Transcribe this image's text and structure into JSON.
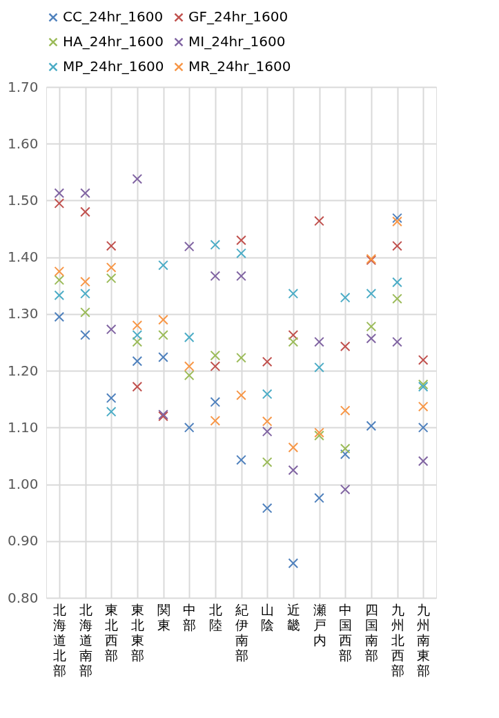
{
  "chart_data": {
    "type": "scatter",
    "categories": [
      "北海道北部",
      "北海道南部",
      "東北西部",
      "東北東部",
      "関東",
      "中部",
      "北陸",
      "紀伊南部",
      "山陰",
      "近畿",
      "瀬戸内",
      "中国西部",
      "四国南部",
      "九州北西部",
      "九州南東部"
    ],
    "series": [
      {
        "name": "CC_24hr_1600",
        "color": "#4f81bd",
        "values": [
          1.295,
          1.263,
          1.152,
          1.217,
          1.224,
          1.1,
          1.145,
          1.043,
          0.958,
          0.861,
          0.976,
          1.053,
          1.103,
          1.469,
          1.1
        ]
      },
      {
        "name": "GF_24hr_1600",
        "color": "#c0504d",
        "values": [
          1.495,
          1.48,
          1.42,
          1.172,
          1.12,
          null,
          1.208,
          1.43,
          1.216,
          1.263,
          1.464,
          1.243,
          1.395,
          1.42,
          1.219
        ]
      },
      {
        "name": "HA_24hr_1600",
        "color": "#9bbb59",
        "values": [
          1.36,
          1.303,
          1.363,
          1.251,
          1.263,
          1.192,
          1.227,
          1.223,
          1.039,
          1.251,
          1.086,
          1.063,
          1.278,
          1.327,
          1.176
        ]
      },
      {
        "name": "MI_24hr_1600",
        "color": "#8064a2",
        "values": [
          1.513,
          1.513,
          1.273,
          1.538,
          1.123,
          1.419,
          1.367,
          1.367,
          1.093,
          1.025,
          1.251,
          0.991,
          1.257,
          1.251,
          1.041
        ]
      },
      {
        "name": "MP_24hr_1600",
        "color": "#4bacc6",
        "values": [
          1.333,
          1.336,
          1.128,
          1.263,
          1.386,
          1.259,
          1.422,
          1.407,
          1.159,
          1.336,
          1.206,
          1.329,
          1.336,
          1.356,
          1.172
        ]
      },
      {
        "name": "MR_24hr_1600",
        "color": "#f79646",
        "values": [
          1.375,
          1.357,
          1.382,
          1.28,
          1.29,
          1.208,
          1.112,
          1.157,
          1.111,
          1.065,
          1.091,
          1.13,
          1.397,
          1.463,
          1.137
        ]
      }
    ],
    "ylim": [
      0.8,
      1.7
    ],
    "yticks": [
      {
        "value": 0.8,
        "label": "0.80"
      },
      {
        "value": 0.9,
        "label": "0.90"
      },
      {
        "value": 1.0,
        "label": "1.00"
      },
      {
        "value": 1.1,
        "label": "1.10"
      },
      {
        "value": 1.2,
        "label": "1.20"
      },
      {
        "value": 1.3,
        "label": "1.30"
      },
      {
        "value": 1.4,
        "label": "1.40"
      },
      {
        "value": 1.5,
        "label": "1.50"
      },
      {
        "value": 1.6,
        "label": "1.60"
      },
      {
        "value": 1.7,
        "label": "1.70"
      }
    ],
    "grid": true,
    "legend": "top",
    "marker": "cross"
  }
}
